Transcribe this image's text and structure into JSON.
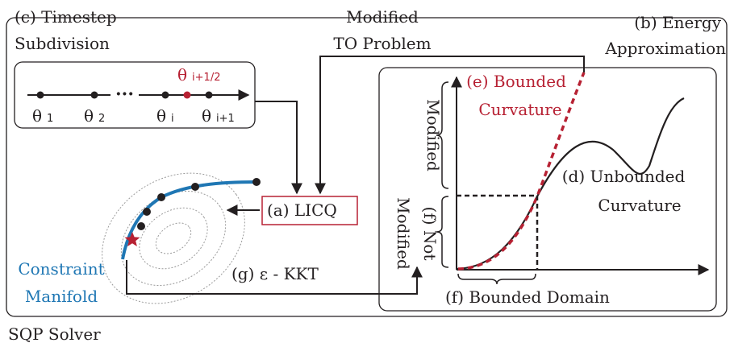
{
  "labels": {
    "timestep_line1": "(c) Timestep",
    "timestep_line2": "Subdivision",
    "modified_line1": "Modified",
    "modified_line2": "TO Problem",
    "energy_line1": "(b) Energy",
    "energy_line2": "Approximation",
    "theta": "θ",
    "theta_sub_half": "i+1/2",
    "theta_sub_1": "1",
    "theta_sub_2": "2",
    "theta_sub_i": "i",
    "theta_sub_i1": "i+1",
    "dots": "···",
    "bounded_line1": "(e) Bounded",
    "bounded_line2": "Curvature",
    "unbounded_line1": "(d) Unbounded",
    "unbounded_line2": "Curvature",
    "modified_vertical": "Modified",
    "not_modified_line1": "(f) Not",
    "not_modified_line2": "Modified",
    "bounded_domain": "(f) Bounded Domain",
    "licq": "(a) LICQ",
    "kkt": "(g) ε - KKT",
    "constraint_line1": "Constraint",
    "constraint_line2": "Manifold",
    "sqp": "SQP Solver"
  },
  "colors": {
    "text": "#231f20",
    "red": "#b72133",
    "blue": "#1f77b4",
    "grey": "#9a9a9a"
  }
}
